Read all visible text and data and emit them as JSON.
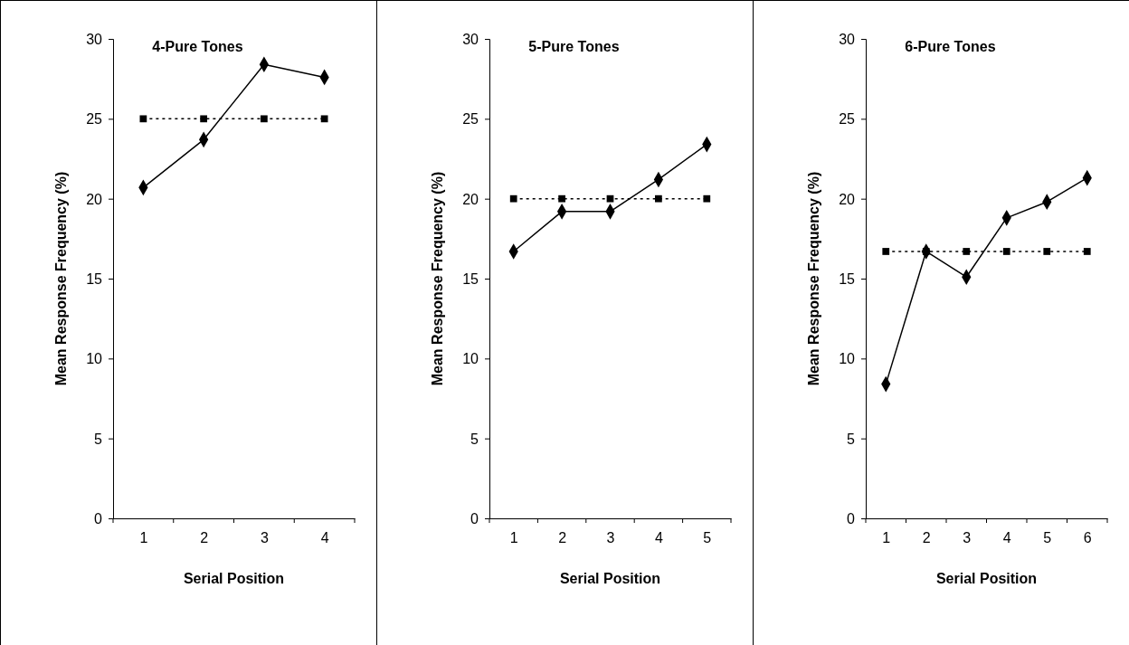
{
  "chart_data": [
    {
      "type": "line",
      "title": "4-Pure Tones",
      "xlabel": "Serial Position",
      "ylabel": "Mean Response Frequency (%)",
      "categories": [
        "1",
        "2",
        "3",
        "4"
      ],
      "ylim": [
        0,
        30
      ],
      "yticks": [
        0,
        5,
        10,
        15,
        20,
        25,
        30
      ],
      "grid": false,
      "series": [
        {
          "color": "#000000",
          "marker": "diamond",
          "line_style": "solid",
          "values": [
            20.7,
            23.7,
            28.4,
            27.6
          ]
        },
        {
          "color": "#000000",
          "marker": "square",
          "line_style": "dotted",
          "values": [
            25,
            25,
            25,
            25
          ]
        }
      ]
    },
    {
      "type": "line",
      "title": "5-Pure Tones",
      "xlabel": "Serial Position",
      "ylabel": "Mean Response Frequency (%)",
      "categories": [
        "1",
        "2",
        "3",
        "4",
        "5"
      ],
      "ylim": [
        0,
        30
      ],
      "yticks": [
        0,
        5,
        10,
        15,
        20,
        25,
        30
      ],
      "grid": false,
      "series": [
        {
          "color": "#000000",
          "marker": "diamond",
          "line_style": "solid",
          "values": [
            16.7,
            19.2,
            19.2,
            21.2,
            23.4
          ]
        },
        {
          "color": "#000000",
          "marker": "square",
          "line_style": "dotted",
          "values": [
            20,
            20,
            20,
            20,
            20
          ]
        }
      ]
    },
    {
      "type": "line",
      "title": "6-Pure Tones",
      "xlabel": "Serial Position",
      "ylabel": "Mean Response Frequency (%)",
      "categories": [
        "1",
        "2",
        "3",
        "4",
        "5",
        "6"
      ],
      "ylim": [
        0,
        30
      ],
      "yticks": [
        0,
        5,
        10,
        15,
        20,
        25,
        30
      ],
      "grid": false,
      "series": [
        {
          "color": "#000000",
          "marker": "diamond",
          "line_style": "solid",
          "values": [
            8.4,
            16.7,
            15.1,
            18.8,
            19.8,
            21.3
          ]
        },
        {
          "color": "#000000",
          "marker": "square",
          "line_style": "dotted",
          "values": [
            16.7,
            16.7,
            16.7,
            16.7,
            16.7,
            16.7
          ]
        }
      ]
    }
  ]
}
